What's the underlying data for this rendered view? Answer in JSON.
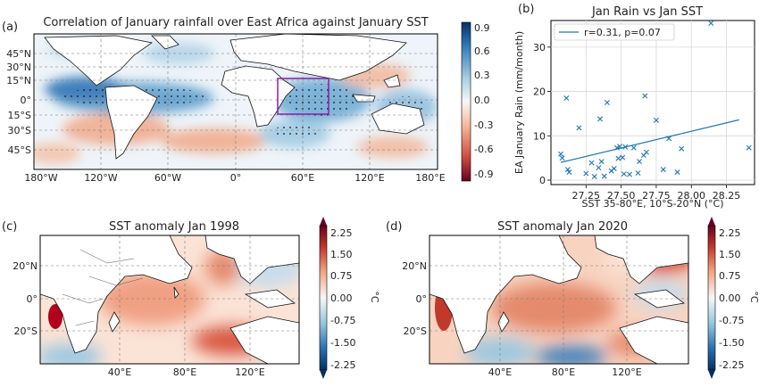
{
  "panels": {
    "a": {
      "letter": "(a)",
      "title": "Correlation of January rainfall over East Africa against January SST",
      "lat_labels": [
        "45°N",
        "30°N",
        "15°N",
        "0°",
        "15°S",
        "30°S",
        "45°S"
      ],
      "lon_labels": [
        "180°W",
        "120°W",
        "60°W",
        "0°",
        "60°E",
        "120°E",
        "180°E"
      ],
      "colorbar_ticks": [
        "0.9",
        "0.6",
        "0.3",
        "0.0",
        "-0.3",
        "-0.6",
        "-0.9"
      ]
    },
    "b": {
      "letter": "(b)",
      "title": "Jan Rain vs Jan SST",
      "legend": "r=0.31, p=0.07",
      "line_color": "#1f77b4"
    },
    "c": {
      "letter": "(c)",
      "title": "SST anomaly Jan 1998",
      "lat_labels": [
        "20°N",
        "0°",
        "20°S"
      ],
      "lon_labels": [
        "40°E",
        "80°E",
        "120°E"
      ],
      "colorbar_ticks": [
        "2.25",
        "1.50",
        "0.75",
        "0.00",
        "-0.75",
        "-1.50",
        "-2.25"
      ],
      "unit": "°C"
    },
    "d": {
      "letter": "(d)",
      "title": "SST anomaly Jan 2020",
      "lat_labels": [
        "20°N",
        "0°",
        "20°S"
      ],
      "lon_labels": [
        "40°E",
        "80°E",
        "120°E"
      ],
      "colorbar_ticks": [
        "2.25",
        "1.50",
        "0.75",
        "0.00",
        "-0.75",
        "-1.50",
        "-2.25"
      ],
      "unit": "°C"
    }
  },
  "chart_data": {
    "type": "scatter",
    "title": "Jan Rain vs Jan SST",
    "xlabel": "SST 35-80°E, 10°S-20°N (°C)",
    "ylabel": "EA January Rain (mm/month)",
    "xlim": [
      27.0,
      28.45
    ],
    "ylim": [
      -1,
      36
    ],
    "x_ticks": [
      27.25,
      27.5,
      27.75,
      28.0,
      28.25
    ],
    "x_tick_labels": [
      "27.25",
      "27.50",
      "27.75",
      "28.00",
      "28.25"
    ],
    "y_ticks": [
      0,
      10,
      20,
      30
    ],
    "y_tick_labels": [
      "0",
      "10",
      "20",
      "30"
    ],
    "grid": true,
    "legend": "top-left",
    "points": [
      [
        27.07,
        5.9
      ],
      [
        27.08,
        5.0
      ],
      [
        27.11,
        18.5
      ],
      [
        27.12,
        2.4
      ],
      [
        27.13,
        1.8
      ],
      [
        27.2,
        11.8
      ],
      [
        27.25,
        1.5
      ],
      [
        27.29,
        3.9
      ],
      [
        27.31,
        0.8
      ],
      [
        27.34,
        2.8
      ],
      [
        27.35,
        13.8
      ],
      [
        27.36,
        4.2
      ],
      [
        27.38,
        0.9
      ],
      [
        27.4,
        17.5
      ],
      [
        27.43,
        2.1
      ],
      [
        27.45,
        2.6
      ],
      [
        27.47,
        7.3
      ],
      [
        27.48,
        4.9
      ],
      [
        27.49,
        7.6
      ],
      [
        27.51,
        5.1
      ],
      [
        27.52,
        1.4
      ],
      [
        27.53,
        7.5
      ],
      [
        27.56,
        1.3
      ],
      [
        27.59,
        7.3
      ],
      [
        27.62,
        1.6
      ],
      [
        27.63,
        4.2
      ],
      [
        27.66,
        5.6
      ],
      [
        27.67,
        19.0
      ],
      [
        27.68,
        6.3
      ],
      [
        27.75,
        13.5
      ],
      [
        27.8,
        2.4
      ],
      [
        27.84,
        9.4
      ],
      [
        27.9,
        1.8
      ],
      [
        27.93,
        7.1
      ],
      [
        28.14,
        35.4
      ],
      [
        28.41,
        7.3
      ]
    ],
    "fit": {
      "name": "r=0.31, p=0.07",
      "x": [
        27.07,
        28.34
      ],
      "y": [
        4.0,
        13.6
      ]
    }
  }
}
